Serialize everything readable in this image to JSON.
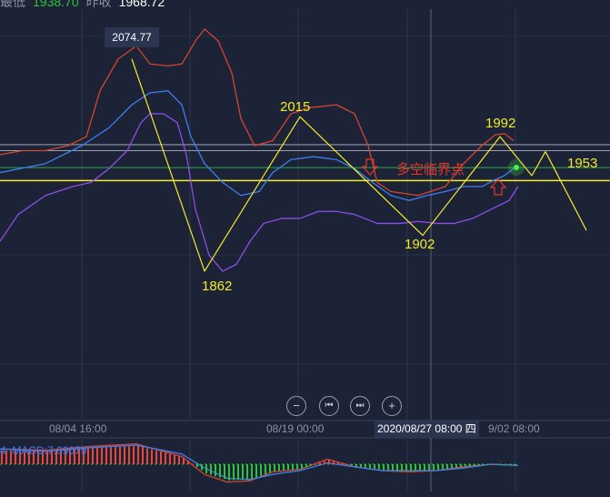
{
  "header": {
    "low_label": "最低",
    "low_value": "1938.70",
    "prev_close_label": "昨收",
    "prev_close_value": "1968.72"
  },
  "colors": {
    "background": "#1c2336",
    "upper_band": "#d5452f",
    "middle_band": "#3e7ef0",
    "lower_band": "#8d4de8",
    "zigzag": "#f3ea2a",
    "support": "#f3ea2a",
    "green_line": "#2aa84a",
    "critical": "#e8362f",
    "up": "#e8473a",
    "down": "#2ec23a"
  },
  "chart_data": {
    "type": "line",
    "ylim": [
      1830,
      2140
    ],
    "x_tick_labels": [
      "08/04 16:00",
      "08/19 00:00",
      "9/02 08:00"
    ],
    "crosshair_label": "2020/08/27 08:00 四",
    "price_tip": "2074.77",
    "series": [
      {
        "key": "upper",
        "points": [
          [
            0,
            1979
          ],
          [
            5,
            1983
          ],
          [
            10,
            1983
          ],
          [
            15,
            1988
          ],
          [
            19,
            1997
          ],
          [
            22,
            2043
          ],
          [
            26,
            2075
          ],
          [
            30,
            2088
          ],
          [
            33,
            2070
          ],
          [
            37,
            2068
          ],
          [
            40,
            2070
          ],
          [
            43,
            2093
          ],
          [
            45,
            2105
          ],
          [
            48,
            2093
          ],
          [
            51,
            2061
          ],
          [
            53,
            2015
          ],
          [
            56,
            1988
          ],
          [
            60,
            1993
          ],
          [
            64,
            2020
          ],
          [
            68,
            2026
          ],
          [
            74,
            2029
          ],
          [
            78,
            2020
          ],
          [
            81,
            1988
          ],
          [
            83,
            1951
          ],
          [
            86,
            1942
          ],
          [
            92,
            1938
          ],
          [
            98,
            1947
          ],
          [
            102,
            1970
          ],
          [
            106,
            1988
          ],
          [
            109,
            1999
          ],
          [
            111,
            2000
          ],
          [
            113,
            1993
          ]
        ]
      },
      {
        "key": "middle",
        "points": [
          [
            0,
            1961
          ],
          [
            10,
            1970
          ],
          [
            18,
            1988
          ],
          [
            24,
            2006
          ],
          [
            29,
            2029
          ],
          [
            33,
            2041
          ],
          [
            37,
            2043
          ],
          [
            40,
            2029
          ],
          [
            42,
            1997
          ],
          [
            45,
            1970
          ],
          [
            49,
            1951
          ],
          [
            53,
            1938
          ],
          [
            57,
            1942
          ],
          [
            60,
            1961
          ],
          [
            64,
            1974
          ],
          [
            69,
            1977
          ],
          [
            74,
            1974
          ],
          [
            78,
            1965
          ],
          [
            82,
            1951
          ],
          [
            86,
            1938
          ],
          [
            90,
            1933
          ],
          [
            94,
            1938
          ],
          [
            98,
            1942
          ],
          [
            102,
            1947
          ],
          [
            106,
            1947
          ],
          [
            109,
            1954
          ],
          [
            111,
            1958
          ],
          [
            113,
            1965
          ]
        ]
      },
      {
        "key": "lower",
        "points": [
          [
            0,
            1892
          ],
          [
            4,
            1919
          ],
          [
            10,
            1938
          ],
          [
            16,
            1947
          ],
          [
            20,
            1951
          ],
          [
            24,
            1965
          ],
          [
            28,
            1983
          ],
          [
            31,
            2011
          ],
          [
            33,
            2020
          ],
          [
            36,
            2020
          ],
          [
            39,
            2011
          ],
          [
            41,
            1979
          ],
          [
            43,
            1924
          ],
          [
            46,
            1878
          ],
          [
            49,
            1862
          ],
          [
            52,
            1869
          ],
          [
            55,
            1892
          ],
          [
            58,
            1910
          ],
          [
            62,
            1915
          ],
          [
            66,
            1915
          ],
          [
            70,
            1922
          ],
          [
            74,
            1922
          ],
          [
            78,
            1919
          ],
          [
            83,
            1910
          ],
          [
            88,
            1910
          ],
          [
            92,
            1912
          ],
          [
            96,
            1910
          ],
          [
            100,
            1910
          ],
          [
            104,
            1915
          ],
          [
            108,
            1924
          ],
          [
            112,
            1933
          ],
          [
            114,
            1947
          ]
        ]
      },
      {
        "key": "zigzag",
        "points": [
          [
            29,
            2075
          ],
          [
            45,
            1862
          ],
          [
            66,
            2017
          ],
          [
            93,
            1898
          ],
          [
            110,
            1997
          ],
          [
            117,
            1958
          ],
          [
            120,
            1982
          ],
          [
            129,
            1903
          ]
        ]
      }
    ],
    "levels": {
      "support": 1953,
      "green": 1966,
      "white_upper": 1989,
      "white_lower": 1983
    },
    "annotations": [
      "2015",
      "1862",
      "1902",
      "1992",
      "1953"
    ],
    "critical_label": "多空临界点",
    "macd": {
      "label_prefix": "4",
      "label": "MACD:7.09079",
      "dif": [
        [
          0,
          12
        ],
        [
          10,
          11
        ],
        [
          20,
          14
        ],
        [
          30,
          16
        ],
        [
          40,
          6
        ],
        [
          45,
          -8
        ],
        [
          50,
          -14
        ],
        [
          55,
          -13
        ],
        [
          60,
          -6
        ],
        [
          66,
          -4
        ],
        [
          72,
          4
        ],
        [
          78,
          -2
        ],
        [
          84,
          -5
        ],
        [
          90,
          -6
        ],
        [
          96,
          -5
        ],
        [
          102,
          -2
        ],
        [
          108,
          0
        ],
        [
          114,
          -1
        ]
      ],
      "dea": [
        [
          0,
          12
        ],
        [
          10,
          10
        ],
        [
          20,
          13
        ],
        [
          30,
          15
        ],
        [
          40,
          8
        ],
        [
          45,
          -3
        ],
        [
          50,
          -11
        ],
        [
          55,
          -12
        ],
        [
          60,
          -8
        ],
        [
          66,
          -5
        ],
        [
          72,
          1
        ],
        [
          78,
          -2
        ],
        [
          84,
          -5
        ],
        [
          90,
          -5
        ],
        [
          96,
          -5
        ],
        [
          102,
          -3
        ],
        [
          108,
          0
        ],
        [
          114,
          -1
        ]
      ],
      "ylim": [
        -18,
        20
      ]
    }
  },
  "controls": {
    "zoom_out": "−",
    "prev": "⏮",
    "next": "⏭",
    "zoom_in": "+"
  }
}
